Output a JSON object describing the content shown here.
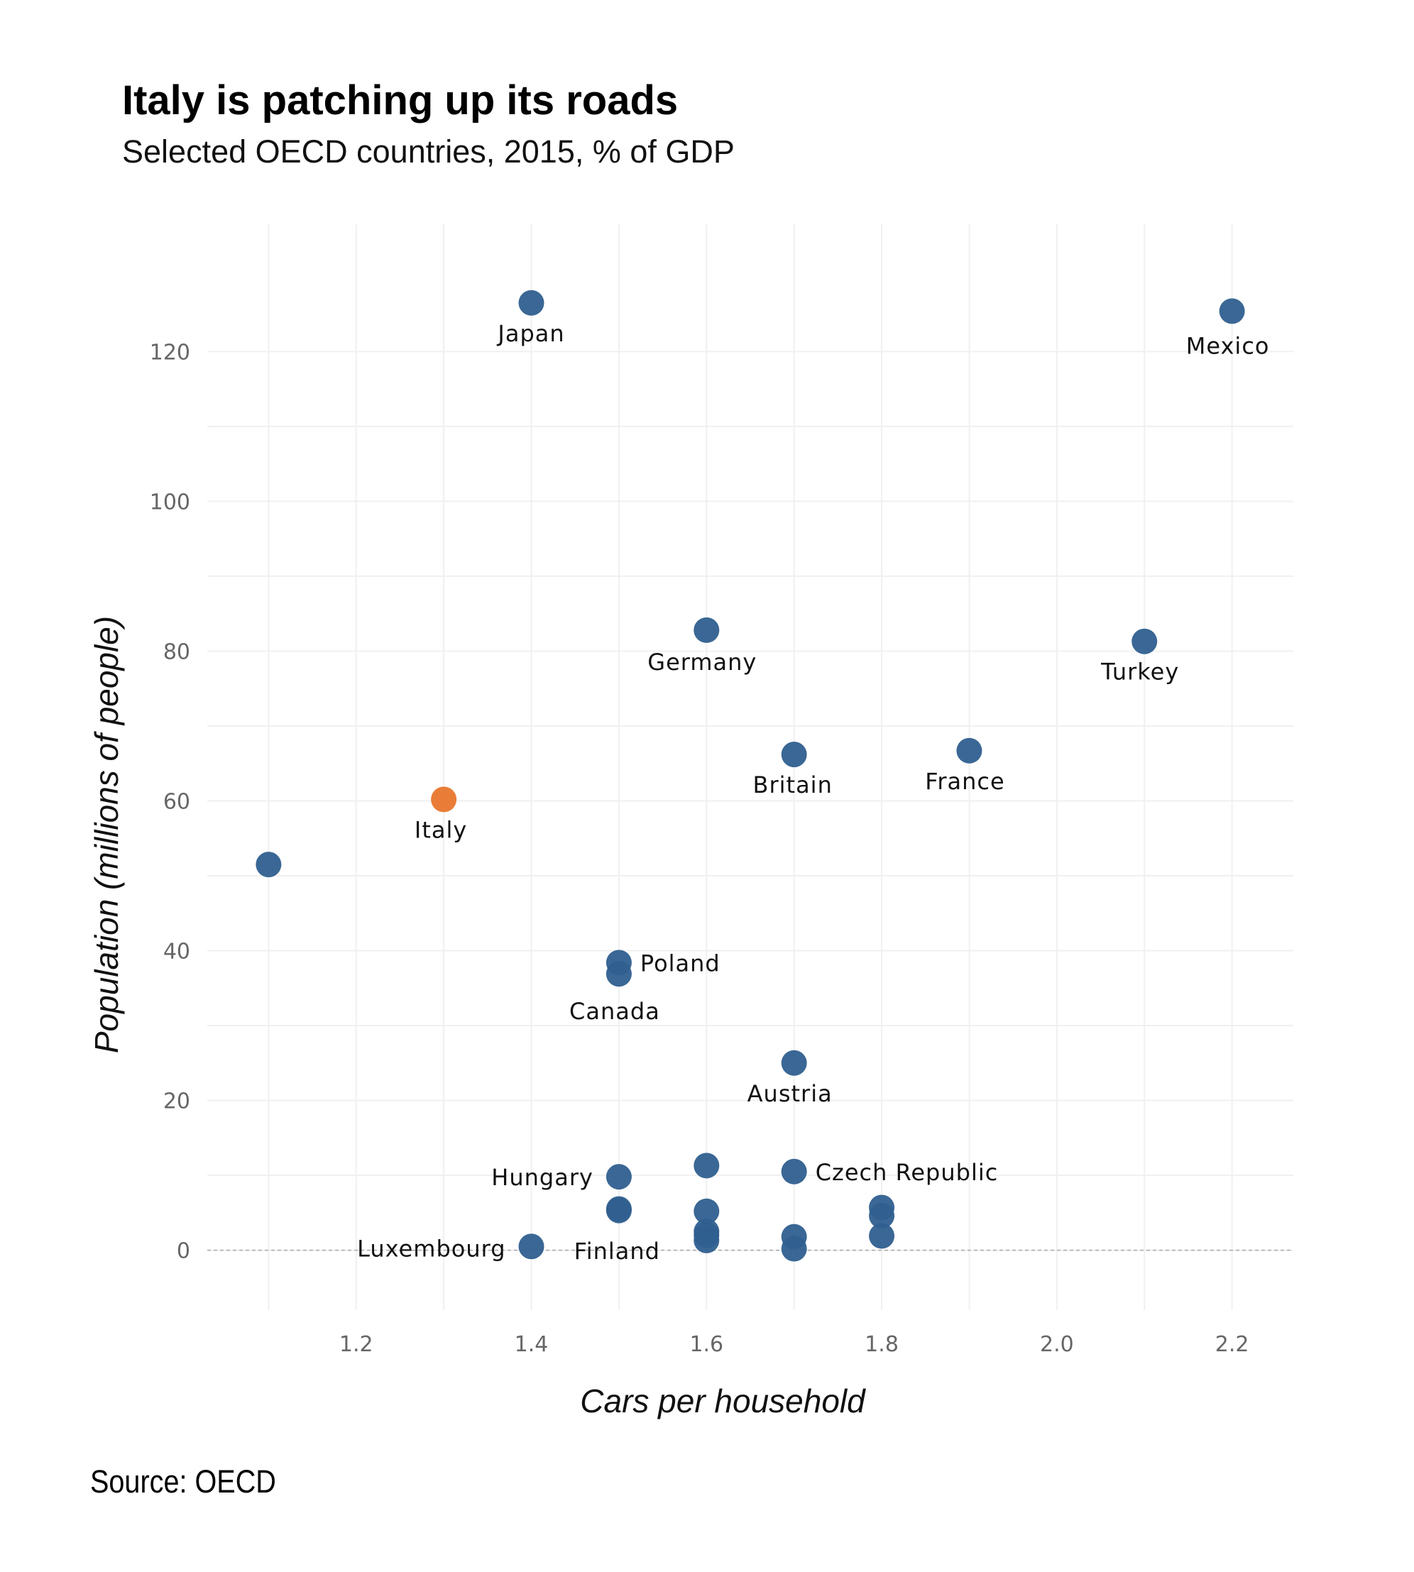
{
  "chart_data": {
    "type": "scatter",
    "title": "Italy is patching up its roads",
    "subtitle": "Selected OECD countries, 2015, % of GDP",
    "xlabel": "Cars per household",
    "ylabel": "Population (millions of people)",
    "source": "Source: OECD",
    "xlim": [
      1.03,
      2.27
    ],
    "ylim": [
      -8,
      137
    ],
    "xticks": [
      1.2,
      1.4,
      1.6,
      1.8,
      2.0,
      2.2
    ],
    "xtick_labels": [
      "1.2",
      "1.4",
      "1.6",
      "1.8",
      "2.0",
      "2.2"
    ],
    "yticks": [
      0,
      20,
      40,
      60,
      80,
      100,
      120
    ],
    "ytick_labels": [
      "0",
      "20",
      "40",
      "60",
      "80",
      "100",
      "120"
    ],
    "grid": true,
    "zero_line": "dashed",
    "colors": {
      "default": "#2f5f8f",
      "highlight": "#e8762c"
    },
    "points": [
      {
        "label": "Japan",
        "x": 1.4,
        "y": 126.5,
        "highlight": false
      },
      {
        "label": "Mexico",
        "x": 2.2,
        "y": 125.4,
        "highlight": false
      },
      {
        "label": "Germany",
        "x": 1.6,
        "y": 82.8,
        "highlight": false
      },
      {
        "label": "Turkey",
        "x": 2.1,
        "y": 81.3,
        "highlight": false
      },
      {
        "label": "Britain",
        "x": 1.7,
        "y": 66.2,
        "highlight": false
      },
      {
        "label": "France",
        "x": 1.9,
        "y": 66.7,
        "highlight": false
      },
      {
        "label": "Italy",
        "x": 1.3,
        "y": 60.2,
        "highlight": true
      },
      {
        "label": "",
        "x": 1.1,
        "y": 51.5,
        "highlight": false
      },
      {
        "label": "Poland",
        "x": 1.5,
        "y": 38.4,
        "highlight": false
      },
      {
        "label": "Canada",
        "x": 1.5,
        "y": 36.9,
        "highlight": false
      },
      {
        "label": "Austria",
        "x": 1.7,
        "y": 25.0,
        "highlight": false
      },
      {
        "label": "Czech Republic",
        "x": 1.7,
        "y": 10.5,
        "highlight": false
      },
      {
        "label": "",
        "x": 1.6,
        "y": 11.3,
        "highlight": false
      },
      {
        "label": "Hungary",
        "x": 1.5,
        "y": 9.8,
        "highlight": false
      },
      {
        "label": "",
        "x": 1.5,
        "y": 5.5,
        "highlight": false
      },
      {
        "label": "",
        "x": 1.5,
        "y": 5.3,
        "highlight": false
      },
      {
        "label": "",
        "x": 1.6,
        "y": 5.2,
        "highlight": false
      },
      {
        "label": "",
        "x": 1.8,
        "y": 5.7,
        "highlight": false
      },
      {
        "label": "",
        "x": 1.8,
        "y": 4.6,
        "highlight": false
      },
      {
        "label": "",
        "x": 1.6,
        "y": 2.5,
        "highlight": false
      },
      {
        "label": "",
        "x": 1.6,
        "y": 2.0,
        "highlight": false
      },
      {
        "label": "Finland",
        "x": 1.6,
        "y": 1.3,
        "highlight": false
      },
      {
        "label": "",
        "x": 1.7,
        "y": 1.8,
        "highlight": false
      },
      {
        "label": "",
        "x": 1.8,
        "y": 1.9,
        "highlight": false
      },
      {
        "label": "Luxembourg",
        "x": 1.4,
        "y": 0.5,
        "highlight": false
      },
      {
        "label": "",
        "x": 1.7,
        "y": 0.2,
        "highlight": false
      }
    ]
  }
}
